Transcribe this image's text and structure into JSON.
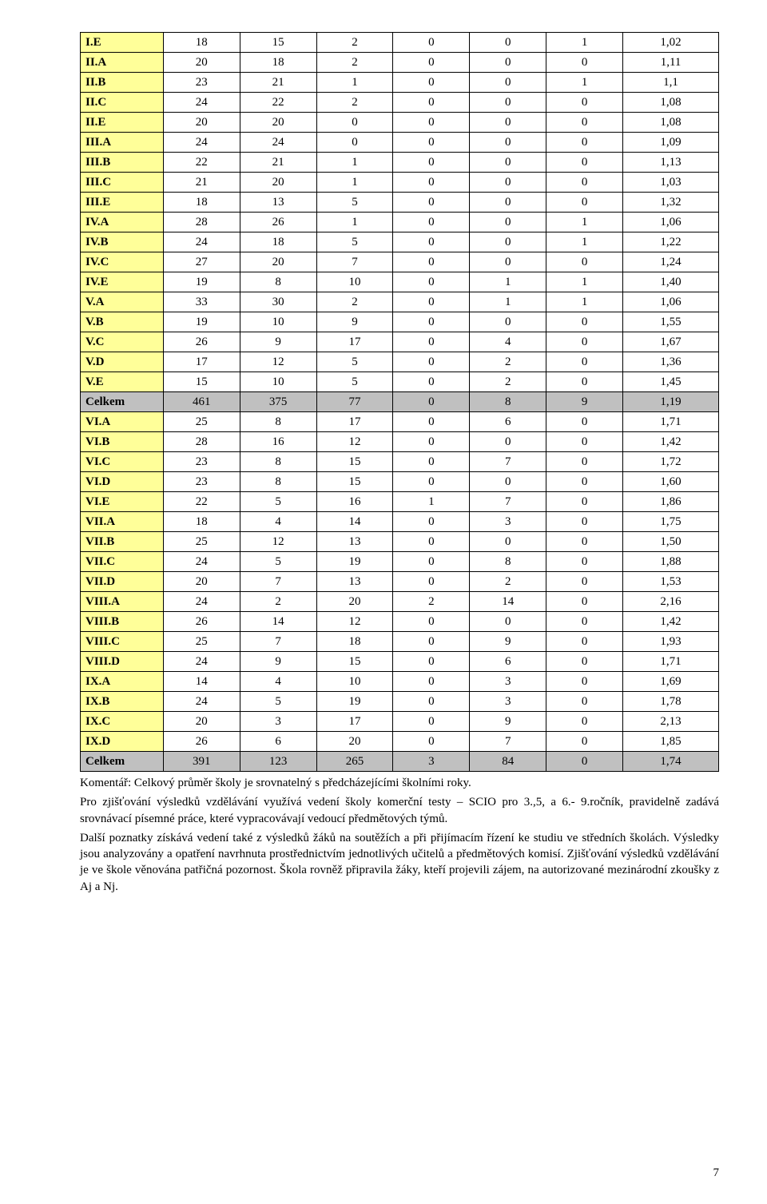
{
  "table": {
    "label_bg": "#ffff99",
    "total_bg": "#c0c0c0",
    "border_color": "#000000",
    "rows": [
      {
        "label": "I.E",
        "v": [
          18,
          15,
          2,
          0,
          0,
          1
        ],
        "avg": "1,02"
      },
      {
        "label": "II.A",
        "v": [
          20,
          18,
          2,
          0,
          0,
          0
        ],
        "avg": "1,11"
      },
      {
        "label": "II.B",
        "v": [
          23,
          21,
          1,
          0,
          0,
          1
        ],
        "avg": "1,1"
      },
      {
        "label": "II.C",
        "v": [
          24,
          22,
          2,
          0,
          0,
          0
        ],
        "avg": "1,08"
      },
      {
        "label": "II.E",
        "v": [
          20,
          20,
          0,
          0,
          0,
          0
        ],
        "avg": "1,08"
      },
      {
        "label": "III.A",
        "v": [
          24,
          24,
          0,
          0,
          0,
          0
        ],
        "avg": "1,09"
      },
      {
        "label": "III.B",
        "v": [
          22,
          21,
          1,
          0,
          0,
          0
        ],
        "avg": "1,13"
      },
      {
        "label": "III.C",
        "v": [
          21,
          20,
          1,
          0,
          0,
          0
        ],
        "avg": "1,03"
      },
      {
        "label": "III.E",
        "v": [
          18,
          13,
          5,
          0,
          0,
          0
        ],
        "avg": "1,32"
      },
      {
        "label": "IV.A",
        "v": [
          28,
          26,
          1,
          0,
          0,
          1
        ],
        "avg": "1,06"
      },
      {
        "label": "IV.B",
        "v": [
          24,
          18,
          5,
          0,
          0,
          1
        ],
        "avg": "1,22"
      },
      {
        "label": "IV.C",
        "v": [
          27,
          20,
          7,
          0,
          0,
          0
        ],
        "avg": "1,24"
      },
      {
        "label": "IV.E",
        "v": [
          19,
          8,
          10,
          0,
          1,
          1
        ],
        "avg": "1,40"
      },
      {
        "label": "V.A",
        "v": [
          33,
          30,
          2,
          0,
          1,
          1
        ],
        "avg": "1,06"
      },
      {
        "label": "V.B",
        "v": [
          19,
          10,
          9,
          0,
          0,
          0
        ],
        "avg": "1,55"
      },
      {
        "label": "V.C",
        "v": [
          26,
          9,
          17,
          0,
          4,
          0
        ],
        "avg": "1,67"
      },
      {
        "label": "V.D",
        "v": [
          17,
          12,
          5,
          0,
          2,
          0
        ],
        "avg": "1,36"
      },
      {
        "label": "V.E",
        "v": [
          15,
          10,
          5,
          0,
          2,
          0
        ],
        "avg": "1,45"
      },
      {
        "label": "Celkem",
        "v": [
          461,
          375,
          77,
          0,
          8,
          9
        ],
        "avg": "1,19",
        "total": true
      },
      {
        "label": "VI.A",
        "v": [
          25,
          8,
          17,
          0,
          6,
          0
        ],
        "avg": "1,71"
      },
      {
        "label": "VI.B",
        "v": [
          28,
          16,
          12,
          0,
          0,
          0
        ],
        "avg": "1,42"
      },
      {
        "label": "VI.C",
        "v": [
          23,
          8,
          15,
          0,
          7,
          0
        ],
        "avg": "1,72"
      },
      {
        "label": "VI.D",
        "v": [
          23,
          8,
          15,
          0,
          0,
          0
        ],
        "avg": "1,60"
      },
      {
        "label": "VI.E",
        "v": [
          22,
          5,
          16,
          1,
          7,
          0
        ],
        "avg": "1,86"
      },
      {
        "label": "VII.A",
        "v": [
          18,
          4,
          14,
          0,
          3,
          0
        ],
        "avg": "1,75"
      },
      {
        "label": "VII.B",
        "v": [
          25,
          12,
          13,
          0,
          0,
          0
        ],
        "avg": "1,50"
      },
      {
        "label": "VII.C",
        "v": [
          24,
          5,
          19,
          0,
          8,
          0
        ],
        "avg": "1,88"
      },
      {
        "label": "VII.D",
        "v": [
          20,
          7,
          13,
          0,
          2,
          0
        ],
        "avg": "1,53"
      },
      {
        "label": "VIII.A",
        "v": [
          24,
          2,
          20,
          2,
          14,
          0
        ],
        "avg": "2,16"
      },
      {
        "label": "VIII.B",
        "v": [
          26,
          14,
          12,
          0,
          0,
          0
        ],
        "avg": "1,42"
      },
      {
        "label": "VIII.C",
        "v": [
          25,
          7,
          18,
          0,
          9,
          0
        ],
        "avg": "1,93"
      },
      {
        "label": "VIII.D",
        "v": [
          24,
          9,
          15,
          0,
          6,
          0
        ],
        "avg": "1,71"
      },
      {
        "label": "IX.A",
        "v": [
          14,
          4,
          10,
          0,
          3,
          0
        ],
        "avg": "1,69"
      },
      {
        "label": "IX.B",
        "v": [
          24,
          5,
          19,
          0,
          3,
          0
        ],
        "avg": "1,78"
      },
      {
        "label": "IX.C",
        "v": [
          20,
          3,
          17,
          0,
          9,
          0
        ],
        "avg": "2,13"
      },
      {
        "label": "IX.D",
        "v": [
          26,
          6,
          20,
          0,
          7,
          0
        ],
        "avg": "1,85"
      },
      {
        "label": "Celkem",
        "v": [
          391,
          123,
          265,
          3,
          84,
          0
        ],
        "avg": "1,74",
        "total": true
      }
    ]
  },
  "paragraphs": {
    "p1": "Komentář: Celkový průměr školy je srovnatelný s předcházejícími školními roky.",
    "p2": "Pro zjišťování výsledků vzdělávání využívá vedení školy komerční testy – SCIO pro 3.,5, a 6.- 9.ročník, pravidelně zadává srovnávací písemné práce, které vypracovávají vedoucí předmětových týmů.",
    "p3": "Další poznatky získává vedení také z výsledků žáků na soutěžích a při přijímacím řízení ke studiu ve středních školách. Výsledky jsou analyzovány a opatření navrhnuta prostřednictvím jednotlivých učitelů a předmětových komisí. Zjišťování výsledků vzdělávání je ve škole věnována patřičná pozornost. Škola rovněž připravila žáky, kteří projevili zájem, na autorizované mezinárodní zkoušky z Aj a Nj."
  },
  "page_number": "7"
}
